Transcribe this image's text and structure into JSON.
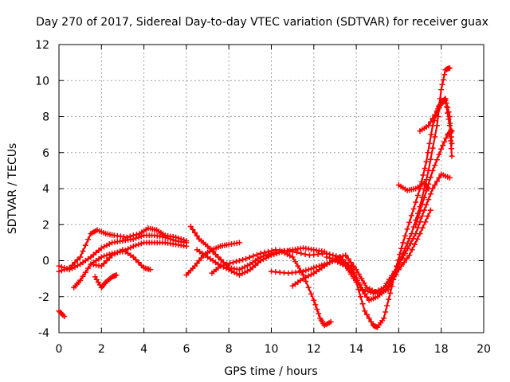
{
  "chart_data": {
    "type": "scatter",
    "title": "Day 270 of 2017, Sidereal Day-to-day VTEC variation (SDTVAR) for receiver guax",
    "xlabel": "GPS time / hours",
    "ylabel": "SDTVAR / TECUs",
    "xlim": [
      0,
      20
    ],
    "ylim": [
      -4,
      12
    ],
    "xticks": [
      0,
      2,
      4,
      6,
      8,
      10,
      12,
      14,
      16,
      18,
      20
    ],
    "yticks": [
      -4,
      -2,
      0,
      2,
      4,
      6,
      8,
      10,
      12
    ],
    "grid": true,
    "marker": "+",
    "color": "#ff0000",
    "series": [
      {
        "name": "trace-1",
        "points": [
          [
            0.0,
            -2.8
          ],
          [
            0.25,
            -3.1
          ]
        ]
      },
      {
        "name": "trace-2",
        "points": [
          [
            0.0,
            -0.6
          ],
          [
            0.5,
            -0.4
          ],
          [
            1.0,
            0.2
          ],
          [
            1.5,
            1.5
          ],
          [
            1.8,
            1.7
          ],
          [
            2.2,
            1.5
          ],
          [
            2.6,
            1.4
          ],
          [
            3.2,
            1.3
          ],
          [
            3.8,
            1.5
          ],
          [
            4.2,
            1.8
          ],
          [
            4.6,
            1.7
          ],
          [
            5.0,
            1.4
          ],
          [
            5.5,
            1.3
          ],
          [
            6.0,
            1.1
          ]
        ]
      },
      {
        "name": "trace-3",
        "points": [
          [
            0.0,
            -0.3
          ],
          [
            0.5,
            -0.5
          ],
          [
            1.0,
            -0.2
          ],
          [
            1.5,
            0.2
          ],
          [
            2.0,
            0.7
          ],
          [
            2.5,
            1.0
          ],
          [
            3.0,
            1.1
          ],
          [
            3.5,
            1.2
          ],
          [
            4.0,
            1.4
          ],
          [
            4.5,
            1.4
          ],
          [
            5.0,
            1.3
          ],
          [
            5.5,
            1.1
          ],
          [
            6.0,
            1.0
          ]
        ]
      },
      {
        "name": "trace-4",
        "points": [
          [
            0.7,
            -1.5
          ],
          [
            1.0,
            -1.1
          ],
          [
            1.5,
            -0.2
          ],
          [
            2.0,
            0.2
          ],
          [
            2.5,
            0.4
          ],
          [
            3.0,
            0.5
          ],
          [
            3.5,
            0.8
          ],
          [
            4.0,
            1.0
          ],
          [
            4.5,
            1.0
          ],
          [
            5.0,
            1.0
          ],
          [
            5.5,
            0.9
          ],
          [
            6.0,
            0.8
          ]
        ]
      },
      {
        "name": "trace-5",
        "points": [
          [
            1.5,
            -0.2
          ],
          [
            2.0,
            -0.3
          ],
          [
            2.5,
            0.3
          ],
          [
            3.0,
            0.6
          ],
          [
            3.5,
            0.2
          ],
          [
            4.0,
            -0.4
          ],
          [
            4.3,
            -0.5
          ]
        ]
      },
      {
        "name": "trace-6",
        "points": [
          [
            1.7,
            -0.9
          ],
          [
            2.0,
            -1.5
          ],
          [
            2.2,
            -1.2
          ],
          [
            2.5,
            -0.9
          ],
          [
            2.7,
            -0.8
          ]
        ]
      },
      {
        "name": "trace-7",
        "points": [
          [
            6.0,
            -0.8
          ],
          [
            6.4,
            -0.3
          ],
          [
            6.8,
            0.3
          ],
          [
            7.2,
            0.6
          ],
          [
            7.6,
            0.8
          ],
          [
            8.0,
            0.9
          ],
          [
            8.5,
            1.0
          ]
        ]
      },
      {
        "name": "trace-8",
        "points": [
          [
            6.2,
            1.9
          ],
          [
            6.6,
            1.2
          ],
          [
            7.0,
            0.8
          ],
          [
            7.5,
            0.2
          ],
          [
            8.0,
            -0.4
          ],
          [
            8.5,
            -0.5
          ],
          [
            9.0,
            -0.2
          ],
          [
            9.5,
            0.2
          ],
          [
            10.0,
            0.4
          ],
          [
            10.5,
            0.5
          ],
          [
            11.0,
            0.6
          ],
          [
            11.5,
            0.7
          ],
          [
            12.0,
            0.6
          ],
          [
            12.5,
            0.5
          ]
        ]
      },
      {
        "name": "trace-9",
        "points": [
          [
            6.5,
            0.6
          ],
          [
            7.0,
            0.2
          ],
          [
            7.5,
            -0.2
          ],
          [
            8.0,
            -0.5
          ],
          [
            8.5,
            -0.8
          ],
          [
            9.0,
            -0.5
          ],
          [
            9.5,
            0.0
          ],
          [
            10.0,
            0.3
          ],
          [
            10.5,
            0.5
          ],
          [
            11.0,
            0.2
          ],
          [
            11.5,
            -0.8
          ],
          [
            12.0,
            -2.2
          ],
          [
            12.3,
            -3.2
          ],
          [
            12.5,
            -3.6
          ],
          [
            12.8,
            -3.4
          ]
        ]
      },
      {
        "name": "trace-10",
        "points": [
          [
            7.2,
            -0.7
          ],
          [
            7.6,
            -0.3
          ],
          [
            8.2,
            -0.1
          ],
          [
            8.8,
            0.1
          ],
          [
            9.5,
            0.4
          ],
          [
            10.2,
            0.6
          ],
          [
            11.0,
            0.5
          ],
          [
            11.8,
            0.3
          ],
          [
            12.6,
            0.4
          ],
          [
            13.2,
            0.2
          ],
          [
            13.8,
            -0.4
          ],
          [
            14.2,
            -1.5
          ],
          [
            14.6,
            -2.2
          ],
          [
            15.0,
            -2.0
          ],
          [
            15.4,
            -1.6
          ],
          [
            15.8,
            -0.8
          ],
          [
            16.2,
            0.4
          ],
          [
            16.6,
            1.5
          ],
          [
            17.0,
            3.0
          ],
          [
            17.4,
            5.0
          ],
          [
            17.8,
            7.5
          ],
          [
            18.0,
            9.5
          ],
          [
            18.2,
            10.6
          ],
          [
            18.4,
            10.7
          ]
        ]
      },
      {
        "name": "trace-11",
        "points": [
          [
            10.0,
            -0.6
          ],
          [
            10.8,
            -0.7
          ],
          [
            11.5,
            -0.6
          ],
          [
            12.0,
            -0.4
          ],
          [
            12.5,
            -0.2
          ],
          [
            13.0,
            0.0
          ],
          [
            13.5,
            -0.3
          ],
          [
            14.0,
            -1.2
          ],
          [
            14.4,
            -2.8
          ],
          [
            14.8,
            -3.6
          ],
          [
            15.0,
            -3.7
          ],
          [
            15.3,
            -3.2
          ],
          [
            15.6,
            -1.8
          ],
          [
            15.9,
            -0.3
          ],
          [
            16.2,
            1.0
          ],
          [
            16.6,
            2.5
          ],
          [
            17.0,
            4.0
          ],
          [
            17.3,
            5.5
          ],
          [
            17.6,
            7.5
          ],
          [
            17.9,
            8.6
          ],
          [
            18.2,
            8.9
          ],
          [
            18.4,
            7.5
          ],
          [
            18.5,
            5.8
          ]
        ]
      },
      {
        "name": "trace-12",
        "points": [
          [
            11.0,
            -1.4
          ],
          [
            11.5,
            -1.0
          ],
          [
            12.0,
            -0.7
          ],
          [
            12.5,
            -0.3
          ],
          [
            13.0,
            0.1
          ],
          [
            13.5,
            0.3
          ],
          [
            14.0,
            -0.5
          ],
          [
            14.5,
            -1.5
          ],
          [
            15.0,
            -1.8
          ],
          [
            15.5,
            -1.6
          ],
          [
            16.0,
            -0.5
          ],
          [
            16.5,
            0.3
          ],
          [
            17.0,
            1.5
          ],
          [
            17.5,
            2.8
          ]
        ]
      },
      {
        "name": "trace-13",
        "points": [
          [
            12.6,
            0.2
          ],
          [
            13.2,
            0.0
          ],
          [
            13.8,
            -0.6
          ],
          [
            14.3,
            -1.6
          ],
          [
            14.8,
            -1.8
          ],
          [
            15.3,
            -1.5
          ],
          [
            15.8,
            -0.6
          ],
          [
            16.3,
            0.4
          ],
          [
            16.8,
            1.5
          ],
          [
            17.2,
            2.8
          ],
          [
            17.6,
            4.0
          ],
          [
            18.0,
            4.8
          ],
          [
            18.4,
            4.6
          ]
        ]
      },
      {
        "name": "trace-14",
        "points": [
          [
            16.0,
            4.2
          ],
          [
            16.4,
            3.9
          ],
          [
            16.8,
            4.0
          ],
          [
            17.2,
            4.3
          ],
          [
            17.4,
            4.0
          ]
        ]
      },
      {
        "name": "trace-15",
        "points": [
          [
            17.0,
            7.2
          ],
          [
            17.4,
            7.5
          ],
          [
            17.8,
            8.3
          ],
          [
            18.0,
            8.8
          ],
          [
            18.2,
            9.0
          ],
          [
            18.4,
            8.0
          ],
          [
            18.5,
            6.5
          ]
        ]
      },
      {
        "name": "trace-16",
        "points": [
          [
            16.8,
            2.0
          ],
          [
            17.2,
            3.5
          ],
          [
            17.6,
            5.0
          ],
          [
            18.0,
            6.2
          ],
          [
            18.3,
            7.0
          ],
          [
            18.5,
            7.2
          ]
        ]
      }
    ]
  }
}
